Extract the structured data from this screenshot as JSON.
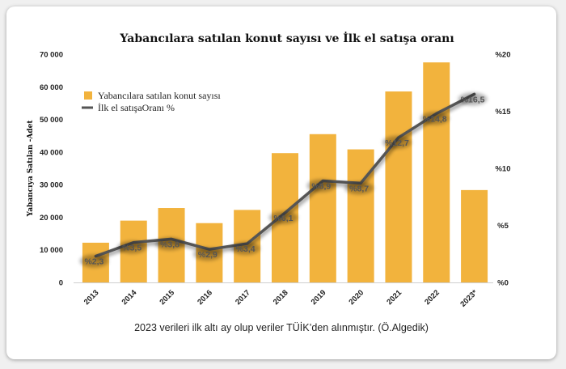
{
  "chart_data": {
    "type": "bar",
    "title": "Yabancılara satılan konut sayısı ve İlk el satışa oranı",
    "ylabel": "Yabancıya Satılan -Adet",
    "y2label": "",
    "categories": [
      "2013",
      "2014",
      "2015",
      "2016",
      "2017",
      "2018",
      "2019",
      "2020",
      "2021",
      "2022",
      "2023*"
    ],
    "ylim": [
      0,
      70000
    ],
    "y2lim": [
      0,
      20
    ],
    "yticks": [
      0,
      10000,
      20000,
      30000,
      40000,
      50000,
      60000,
      70000
    ],
    "ytick_labels": [
      "0",
      "10 000",
      "20 000",
      "30 000",
      "40 000",
      "50 000",
      "60 000",
      "70 000"
    ],
    "y2ticks": [
      0,
      5,
      10,
      15,
      20
    ],
    "y2tick_labels": [
      "%0",
      "%5",
      "%10",
      "%15",
      "%20"
    ],
    "series": [
      {
        "name": "Yabancılara satılan konut sayısı",
        "type": "bar",
        "color": "#f2b33d",
        "values": [
          12181,
          18959,
          22830,
          18189,
          22234,
          39663,
          45483,
          40812,
          58576,
          67490,
          28331
        ]
      },
      {
        "name": "İlk el satışaOranı %",
        "type": "line",
        "axis": "right",
        "color": "#555555",
        "values": [
          2.3,
          3.5,
          3.8,
          2.9,
          3.4,
          6.1,
          8.9,
          8.7,
          12.7,
          14.8,
          16.5
        ],
        "labels": [
          "%2,3",
          "%3,5",
          "%3,8",
          "%2,9",
          "%3,4",
          "%6,1",
          "%8,9",
          "%8,7",
          "%12,7",
          "%14,8",
          "%16,5"
        ]
      }
    ]
  },
  "legend": {
    "bar_label": "Yabancılara satılan konut sayısı",
    "line_label": "İlk el satışaOranı %"
  },
  "footnote": "2023 verileri ilk altı ay olup veriler TÜİK’den alınmıştır. (Ö.Algedik)"
}
